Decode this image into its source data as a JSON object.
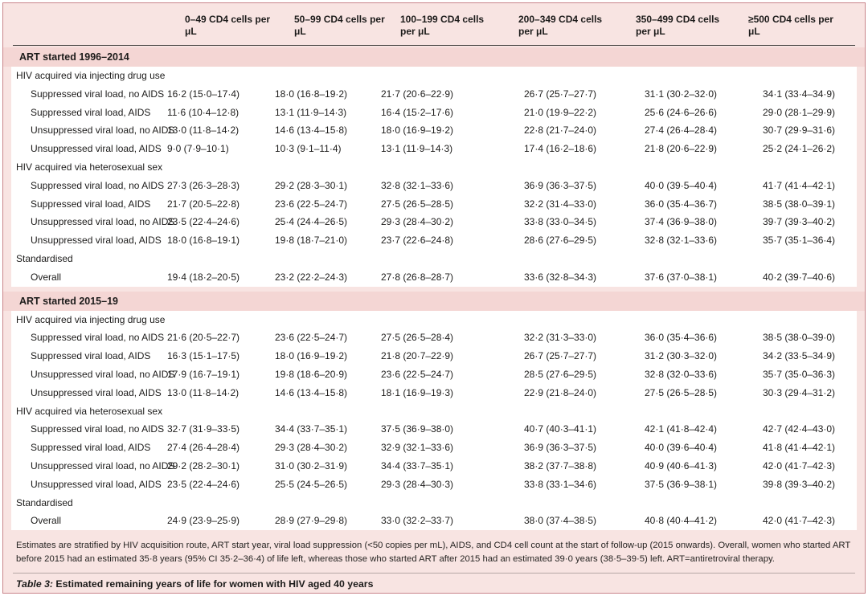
{
  "columns": [
    "0–49 CD4 cells per μL",
    "50–99 CD4 cells per μL",
    "100–199 CD4 cells per μL",
    "200–349 CD4 cells per μL",
    "350–499 CD4 cells per μL",
    "≥500 CD4 cells per μL"
  ],
  "sections": [
    {
      "title": "ART started 1996–2014",
      "groups": [
        {
          "label": "HIV acquired via injecting drug use",
          "rows": [
            {
              "label": "Suppressed viral load, no AIDS",
              "values": [
                "16·2 (15·0–17·4)",
                "18·0 (16·8–19·2)",
                "21·7 (20·6–22·9)",
                "26·7 (25·7–27·7)",
                "31·1 (30·2–32·0)",
                "34·1 (33·4–34·9)"
              ]
            },
            {
              "label": "Suppressed viral load, AIDS",
              "values": [
                "11·6 (10·4–12·8)",
                "13·1 (11·9–14·3)",
                "16·4 (15·2–17·6)",
                "21·0 (19·9–22·2)",
                "25·6 (24·6–26·6)",
                "29·0 (28·1–29·9)"
              ]
            },
            {
              "label": "Unsuppressed viral load, no AIDS",
              "values": [
                "13·0 (11·8–14·2)",
                "14·6 (13·4–15·8)",
                "18·0 (16·9–19·2)",
                "22·8 (21·7–24·0)",
                "27·4 (26·4–28·4)",
                "30·7 (29·9–31·6)"
              ]
            },
            {
              "label": "Unsuppressed viral load, AIDS",
              "values": [
                "9·0 (7·9–10·1)",
                "10·3 (9·1–11·4)",
                "13·1 (11·9–14·3)",
                "17·4 (16·2–18·6)",
                "21·8 (20·6–22·9)",
                "25·2 (24·1–26·2)"
              ]
            }
          ]
        },
        {
          "label": "HIV acquired via heterosexual sex",
          "rows": [
            {
              "label": "Suppressed viral load, no AIDS",
              "values": [
                "27·3 (26·3–28·3)",
                "29·2 (28·3–30·1)",
                "32·8 (32·1–33·6)",
                "36·9 (36·3–37·5)",
                "40·0 (39·5–40·4)",
                "41·7 (41·4–42·1)"
              ]
            },
            {
              "label": "Suppressed viral load, AIDS",
              "values": [
                "21·7 (20·5–22·8)",
                "23·6 (22·5–24·7)",
                "27·5 (26·5–28·5)",
                "32·2 (31·4–33·0)",
                "36·0 (35·4–36·7)",
                "38·5 (38·0–39·1)"
              ]
            },
            {
              "label": "Unsuppressed viral load, no AIDS",
              "values": [
                "23·5 (22·4–24·6)",
                "25·4 (24·4–26·5)",
                "29·3 (28·4–30·2)",
                "33·8 (33·0–34·5)",
                "37·4 (36·9–38·0)",
                "39·7 (39·3–40·2)"
              ]
            },
            {
              "label": "Unsuppressed viral load, AIDS",
              "values": [
                "18·0 (16·8–19·1)",
                "19·8 (18·7–21·0)",
                "23·7 (22·6–24·8)",
                "28·6 (27·6–29·5)",
                "32·8 (32·1–33·6)",
                "35·7 (35·1–36·4)"
              ]
            }
          ]
        },
        {
          "label": "Standardised",
          "rows": [
            {
              "label": "Overall",
              "values": [
                "19·4 (18·2–20·5)",
                "23·2 (22·2–24·3)",
                "27·8 (26·8–28·7)",
                "33·6 (32·8–34·3)",
                "37·6 (37·0–38·1)",
                "40·2 (39·7–40·6)"
              ]
            }
          ]
        }
      ]
    },
    {
      "title": "ART started 2015–19",
      "groups": [
        {
          "label": "HIV acquired via injecting drug use",
          "rows": [
            {
              "label": "Suppressed viral load, no AIDS",
              "values": [
                "21·6 (20·5–22·7)",
                "23·6 (22·5–24·7)",
                "27·5 (26·5–28·4)",
                "32·2 (31·3–33·0)",
                "36·0 (35·4–36·6)",
                "38·5 (38·0–39·0)"
              ]
            },
            {
              "label": "Suppressed viral load, AIDS",
              "values": [
                "16·3 (15·1–17·5)",
                "18·0 (16·9–19·2)",
                "21·8 (20·7–22·9)",
                "26·7 (25·7–27·7)",
                "31·2 (30·3–32·0)",
                "34·2 (33·5–34·9)"
              ]
            },
            {
              "label": "Unsuppressed viral load, no AIDS",
              "values": [
                "17·9 (16·7–19·1)",
                "19·8 (18·6–20·9)",
                "23·6 (22·5–24·7)",
                "28·5 (27·6–29·5)",
                "32·8 (32·0–33·6)",
                "35·7 (35·0–36·3)"
              ]
            },
            {
              "label": "Unsuppressed viral load, AIDS",
              "values": [
                "13·0 (11·8–14·2)",
                "14·6 (13·4–15·8)",
                "18·1 (16·9–19·3)",
                "22·9 (21·8–24·0)",
                "27·5 (26·5–28·5)",
                "30·3 (29·4–31·2)"
              ]
            }
          ]
        },
        {
          "label": "HIV acquired via heterosexual sex",
          "rows": [
            {
              "label": "Suppressed viral load, no AIDS",
              "values": [
                "32·7 (31·9–33·5)",
                "34·4 (33·7–35·1)",
                "37·5 (36·9–38·0)",
                "40·7 (40·3–41·1)",
                "42·1 (41·8–42·4)",
                "42·7 (42·4–43·0)"
              ]
            },
            {
              "label": "Suppressed viral load, AIDS",
              "values": [
                "27·4 (26·4–28·4)",
                "29·3 (28·4–30·2)",
                "32·9 (32·1–33·6)",
                "36·9 (36·3–37·5)",
                "40·0 (39·6–40·4)",
                "41·8 (41·4–42·1)"
              ]
            },
            {
              "label": "Unsuppressed viral load, no AIDS",
              "values": [
                "29·2 (28·2–30·1)",
                "31·0 (30·2–31·9)",
                "34·4 (33·7–35·1)",
                "38·2 (37·7–38·8)",
                "40·9 (40·6–41·3)",
                "42·0 (41·7–42·3)"
              ]
            },
            {
              "label": "Unsuppressed viral load, AIDS",
              "values": [
                "23·5 (22·4–24·6)",
                "25·5 (24·5–26·5)",
                "29·3 (28·4–30·3)",
                "33·8 (33·1–34·6)",
                "37·5 (36·9–38·1)",
                "39·8 (39·3–40·2)"
              ]
            }
          ]
        },
        {
          "label": "Standardised",
          "rows": [
            {
              "label": "Overall",
              "values": [
                "24·9 (23·9–25·9)",
                "28·9 (27·9–29·8)",
                "33·0 (32·2–33·7)",
                "38·0 (37·4–38·5)",
                "40·8 (40·4–41·2)",
                "42·0 (41·7–42·3)"
              ]
            }
          ]
        }
      ]
    }
  ],
  "footnote": "Estimates are stratified by HIV acquisition route, ART start year, viral load suppression (<50 copies per mL), AIDS, and CD4 cell count at the start of follow-up (2015 onwards). Overall, women who started ART before 2015 had an estimated 35·8 years (95% CI 35·2–36·4) of life left, whereas those who started ART after 2015 had an estimated 39·0 years (38·5–39·5) left. ART=antiretroviral therapy.",
  "caption": {
    "label": "Table 3:",
    "title": " Estimated remaining years of life for women with HIV aged 40 years"
  },
  "colors": {
    "table_background": "#f8e4e2",
    "section_band": "#f4d6d4",
    "row_background": "#ffffff",
    "outer_border": "#c9858b",
    "header_rule": "#4a4745",
    "text": "#1c1b1a"
  }
}
